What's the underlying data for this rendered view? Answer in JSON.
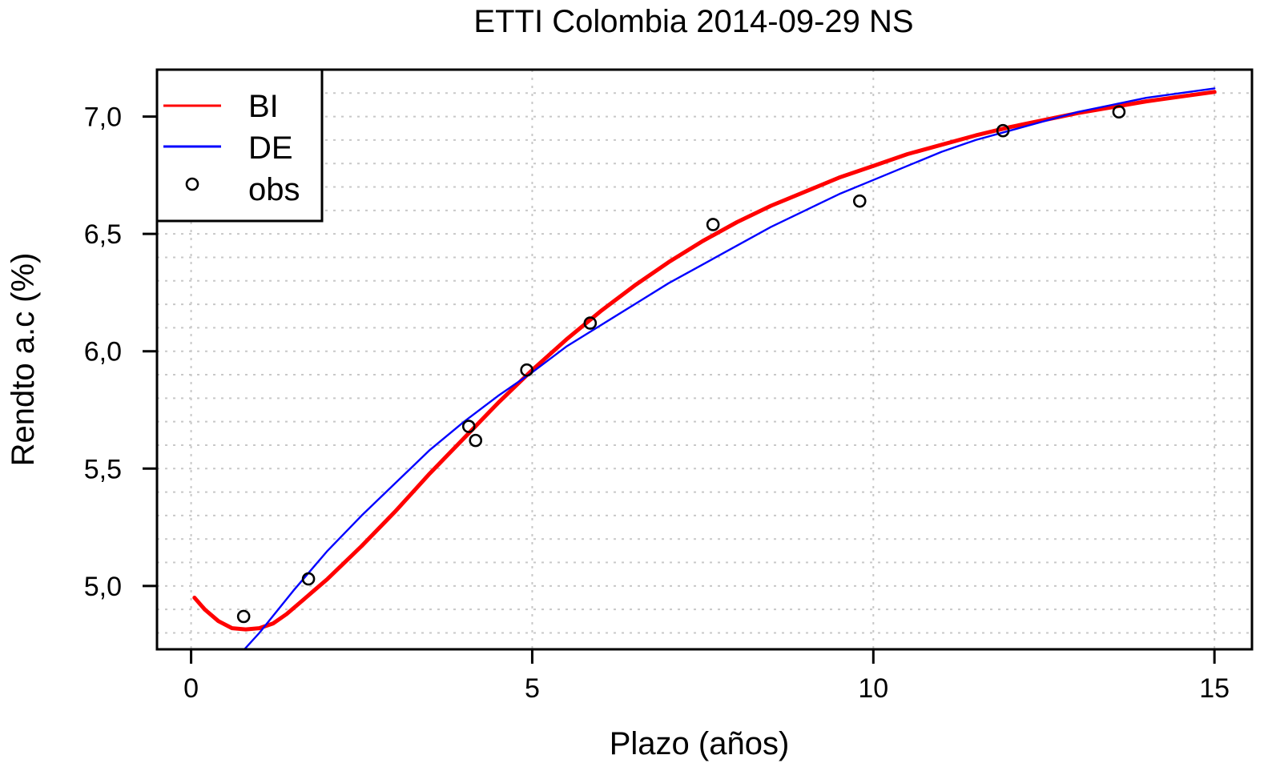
{
  "chart_data": {
    "type": "line",
    "title": "ETTI Colombia 2014-09-29 NS",
    "xlabel": "Plazo (años)",
    "ylabel": "Rendto a.c (%)",
    "xlim": [
      -0.5,
      15.55
    ],
    "ylim": [
      4.73,
      7.2
    ],
    "x_ticks": [
      0,
      5,
      10,
      15
    ],
    "x_tick_labels": [
      "0",
      "5",
      "10",
      "15"
    ],
    "y_ticks": [
      5.0,
      5.5,
      6.0,
      6.5,
      7.0
    ],
    "y_tick_labels": [
      "5,0",
      "5,5",
      "6,0",
      "6,5",
      "7,0"
    ],
    "grid": true,
    "legend_position": "top-left",
    "series": [
      {
        "name": "BI",
        "kind": "line",
        "color": "#ff0000",
        "x": [
          0.05,
          0.2,
          0.4,
          0.6,
          0.8,
          1.0,
          1.2,
          1.4,
          1.6,
          1.8,
          2.0,
          2.5,
          3.0,
          3.5,
          4.0,
          4.5,
          5.0,
          5.5,
          6.0,
          6.5,
          7.0,
          7.5,
          8.0,
          8.5,
          9.0,
          9.5,
          10.0,
          10.5,
          11.0,
          11.5,
          12.0,
          12.5,
          13.0,
          13.5,
          14.0,
          14.5,
          15.0
        ],
        "y": [
          4.95,
          4.9,
          4.85,
          4.82,
          4.815,
          4.82,
          4.84,
          4.88,
          4.93,
          4.98,
          5.03,
          5.17,
          5.32,
          5.48,
          5.63,
          5.78,
          5.92,
          6.05,
          6.17,
          6.28,
          6.38,
          6.47,
          6.55,
          6.62,
          6.68,
          6.74,
          6.79,
          6.84,
          6.88,
          6.92,
          6.955,
          6.985,
          7.015,
          7.04,
          7.065,
          7.085,
          7.105
        ]
      },
      {
        "name": "DE",
        "kind": "line",
        "color": "#0000ff",
        "x": [
          0.75,
          1.0,
          1.5,
          2.0,
          2.5,
          3.0,
          3.5,
          4.0,
          4.5,
          5.0,
          5.5,
          6.0,
          6.5,
          7.0,
          7.5,
          8.0,
          8.5,
          9.0,
          9.5,
          10.0,
          10.5,
          11.0,
          11.5,
          12.0,
          12.5,
          13.0,
          13.5,
          14.0,
          14.5,
          15.0
        ],
        "y": [
          4.72,
          4.8,
          4.98,
          5.15,
          5.3,
          5.44,
          5.58,
          5.7,
          5.81,
          5.91,
          6.02,
          6.11,
          6.2,
          6.29,
          6.37,
          6.45,
          6.53,
          6.6,
          6.67,
          6.73,
          6.79,
          6.85,
          6.9,
          6.94,
          6.98,
          7.02,
          7.05,
          7.08,
          7.1,
          7.12
        ]
      },
      {
        "name": "obs",
        "kind": "points",
        "color": "#000000",
        "x": [
          0.77,
          1.72,
          4.07,
          4.17,
          4.92,
          5.85,
          7.65,
          9.8,
          11.9,
          13.6
        ],
        "y": [
          4.87,
          5.03,
          5.68,
          5.62,
          5.92,
          6.12,
          6.54,
          6.64,
          6.94,
          7.02
        ]
      }
    ]
  }
}
